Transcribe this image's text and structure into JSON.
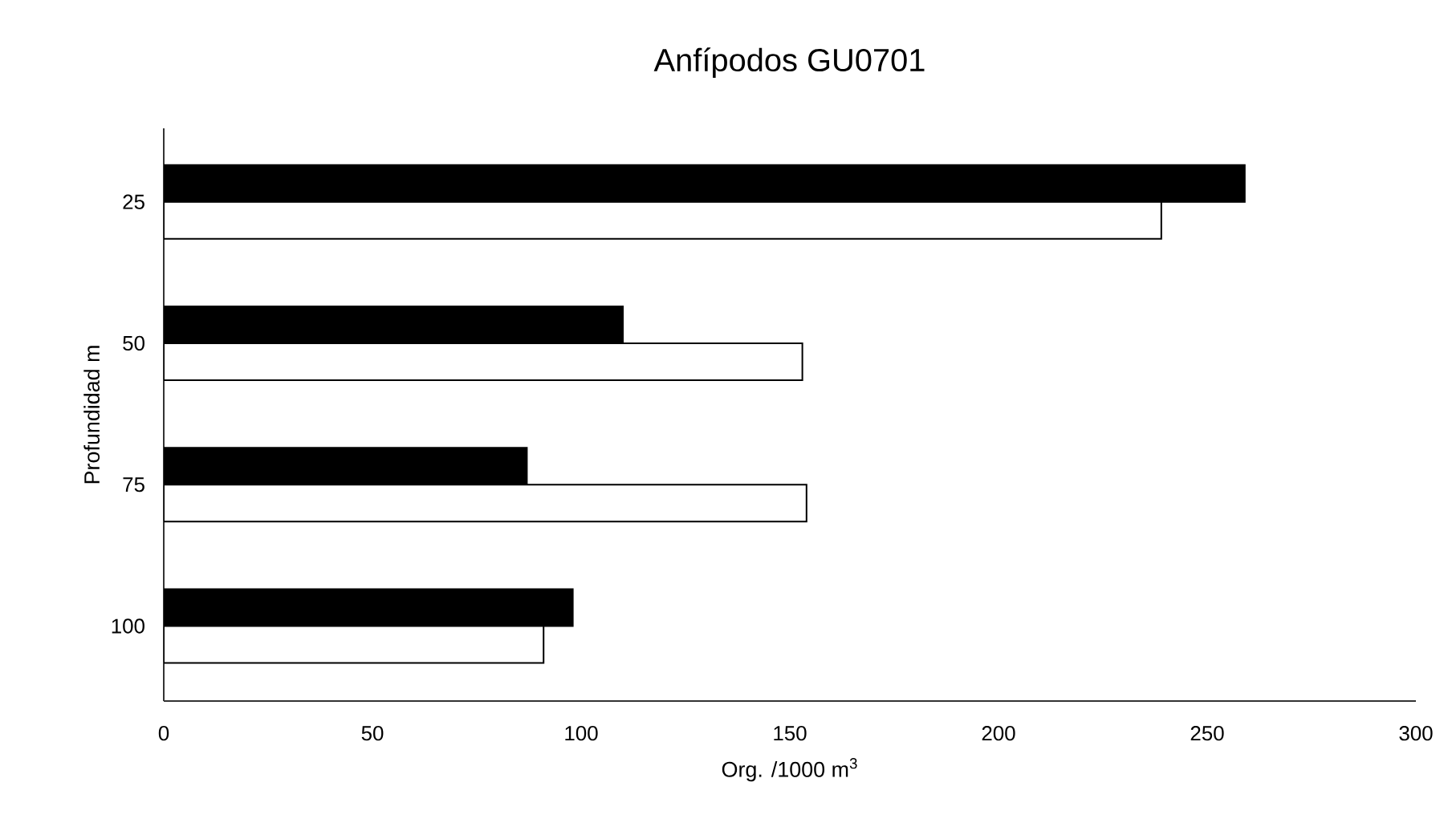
{
  "chart_data": {
    "type": "bar",
    "orientation": "horizontal",
    "title": "Anfípodos GU0701",
    "xlabel": "Org. /1000 m$^{3}$",
    "ylabel": "Profundidad m",
    "categories": [
      "25",
      "50",
      "75",
      "100"
    ],
    "series": [
      {
        "color": "#000000",
        "values": [
          259,
          110,
          87,
          98
        ]
      },
      {
        "color": "#ffffff",
        "values": [
          239,
          153,
          154,
          91
        ]
      }
    ],
    "xlim": [
      0,
      300
    ],
    "xticks": [
      0,
      50,
      100,
      150,
      200,
      250,
      300
    ]
  }
}
